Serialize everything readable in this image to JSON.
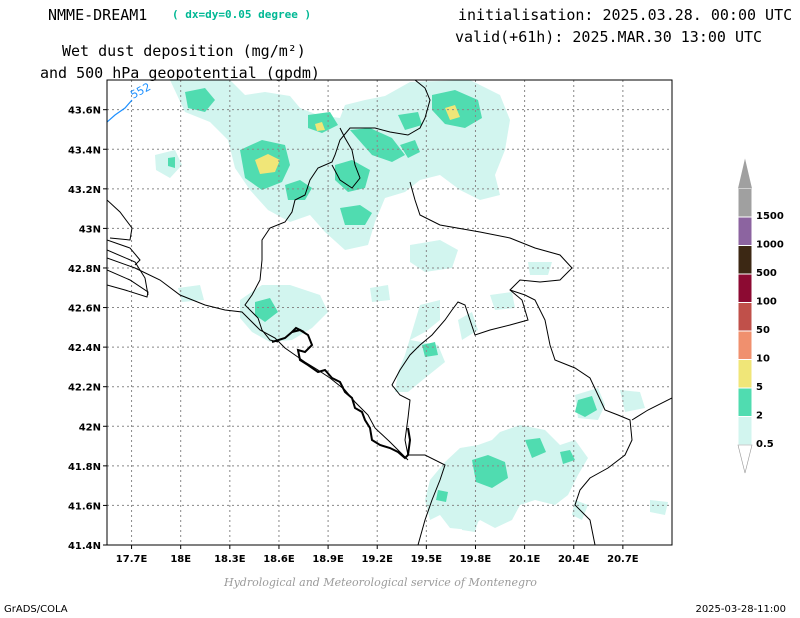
{
  "header": {
    "model": "NMME-DREAM1",
    "resolution": "( dx=dy=0.05 degree )",
    "initialisation": "initialisation: 2025.03.28. 00:00 UTC",
    "valid": "valid(+61h): 2025.MAR.30 13:00 UTC",
    "field_line1": "Wet dust deposition (mg/m²)",
    "field_line2": "and 500 hPa geopotential (gpdm)"
  },
  "map": {
    "lon_range": [
      17.55,
      21.0
    ],
    "lat_range": [
      41.4,
      43.75
    ],
    "lon_ticks": [
      "17.7E",
      "18E",
      "18.3E",
      "18.6E",
      "18.9E",
      "19.2E",
      "19.5E",
      "19.8E",
      "20.1E",
      "20.4E",
      "20.7E"
    ],
    "lon_tick_values": [
      17.7,
      18.0,
      18.3,
      18.6,
      18.9,
      19.2,
      19.5,
      19.8,
      20.1,
      20.4,
      20.7
    ],
    "lat_ticks": [
      "41.4N",
      "41.6N",
      "41.8N",
      "42N",
      "42.2N",
      "42.4N",
      "42.6N",
      "42.8N",
      "43N",
      "43.2N",
      "43.4N",
      "43.6N"
    ],
    "lat_tick_values": [
      41.4,
      41.6,
      41.8,
      42.0,
      42.2,
      42.4,
      42.6,
      42.8,
      43.0,
      43.2,
      43.4,
      43.6
    ],
    "contour_label": "552",
    "contour_color": "#1e90ff"
  },
  "legend": {
    "labels": [
      "0.5",
      "2",
      "5",
      "10",
      "50",
      "100",
      "500",
      "1000",
      "1500"
    ],
    "colors": [
      "#d2f5ef",
      "#50dcb0",
      "#f0e678",
      "#f0906e",
      "#c0504a",
      "#8c0a32",
      "#3c2814",
      "#8c64a0",
      "#a0a0a0"
    ]
  },
  "footer": {
    "credit": "Hydrological and Meteorological service of Montenegro",
    "software": "GrADS/COLA",
    "timestamp": "2025-03-28-11:00"
  }
}
